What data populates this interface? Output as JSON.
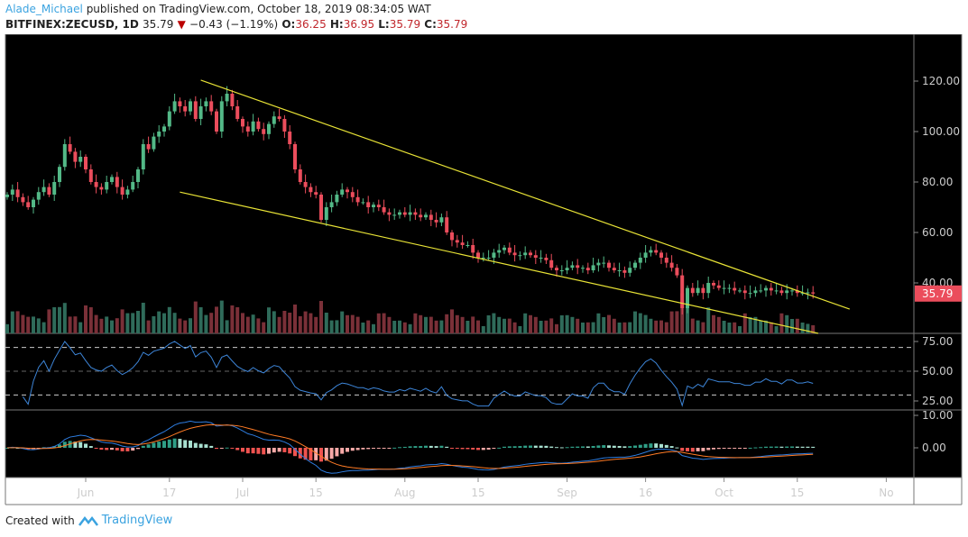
{
  "header": {
    "author": "Alade_Michael",
    "published": "published on TradingView.com, October 18, 2019 08:34:05 WAT",
    "symbol": "BITFINEX:ZECUSD, 1D",
    "last": "35.79",
    "change": "−0.43 (−1.19%)",
    "o_label": "O:",
    "o": "36.25",
    "h_label": "H:",
    "h": "36.95",
    "l_label": "L:",
    "l": "35.79",
    "c_label": "C:",
    "c": "35.79"
  },
  "colors": {
    "up": "#53b987",
    "down": "#eb4d5c",
    "trendline": "#e8e336",
    "rsi": "#3d85d8",
    "macd": "#2e7de0",
    "signal": "#ff7b25",
    "background": "#000000"
  },
  "price_axis": {
    "ticks": [
      "120.00",
      "100.00",
      "80.00",
      "60.00",
      "40.00"
    ],
    "values": [
      120,
      100,
      80,
      60,
      40
    ],
    "last_label": "35.79"
  },
  "rsi_axis": {
    "ticks": [
      "75.00",
      "50.00",
      "25.00"
    ],
    "values": [
      75,
      50,
      25
    ],
    "bands": [
      70,
      50,
      30
    ]
  },
  "macd_axis": {
    "ticks": [
      "10.00",
      "0.00"
    ],
    "values": [
      10,
      0
    ]
  },
  "time_axis": {
    "labels": [
      "Jun",
      "17",
      "Jul",
      "15",
      "Aug",
      "15",
      "Sep",
      "16",
      "Oct",
      "15",
      "No"
    ],
    "dates": [
      "2019-06-01",
      "2019-06-17",
      "2019-07-01",
      "2019-07-15",
      "2019-08-01",
      "2019-08-15",
      "2019-09-01",
      "2019-09-16",
      "2019-10-01",
      "2019-10-15",
      "2019-11-01"
    ]
  },
  "chart_data": {
    "type": "candlestick",
    "start_date": "2019-05-17",
    "interval": "1D",
    "closes": [
      75,
      77,
      74,
      72,
      70,
      73,
      76,
      78,
      75,
      80,
      86,
      95,
      92,
      88,
      90,
      85,
      80,
      78,
      77,
      80,
      82,
      78,
      75,
      77,
      80,
      85,
      95,
      93,
      98,
      100,
      102,
      108,
      112,
      110,
      108,
      112,
      105,
      110,
      112,
      108,
      100,
      112,
      115,
      110,
      105,
      102,
      100,
      104,
      101,
      99,
      103,
      106,
      105,
      100,
      95,
      85,
      80,
      78,
      76,
      75,
      65,
      70,
      72,
      75,
      77,
      76,
      74,
      72,
      72,
      70,
      71,
      70,
      68,
      67,
      67,
      68,
      67,
      68,
      67,
      66,
      67,
      65,
      64,
      66,
      60,
      57,
      56,
      55,
      55,
      52,
      50,
      50,
      50,
      52,
      53,
      54,
      52,
      51,
      51,
      52,
      51,
      50,
      50,
      49,
      46,
      45,
      45,
      46,
      47,
      46,
      46,
      45,
      47,
      48,
      48,
      46,
      45,
      45,
      44,
      46,
      48,
      50,
      52,
      53,
      52,
      50,
      48,
      46,
      43,
      30,
      38,
      36,
      38,
      36,
      40,
      39,
      38,
      38,
      38,
      37,
      37,
      36,
      36,
      37,
      37,
      38,
      37,
      37,
      36,
      37,
      37,
      36,
      36,
      36.25,
      35.79
    ],
    "trendlines": [
      {
        "from": [
          "2019-06-23",
          120.4
        ],
        "to": [
          "2019-10-25",
          29.6
        ]
      },
      {
        "from": [
          "2019-06-19",
          76
        ],
        "to": [
          "2019-10-19",
          20
        ]
      }
    ]
  },
  "footer": {
    "created_with": "Created with",
    "brand": "TradingView"
  }
}
